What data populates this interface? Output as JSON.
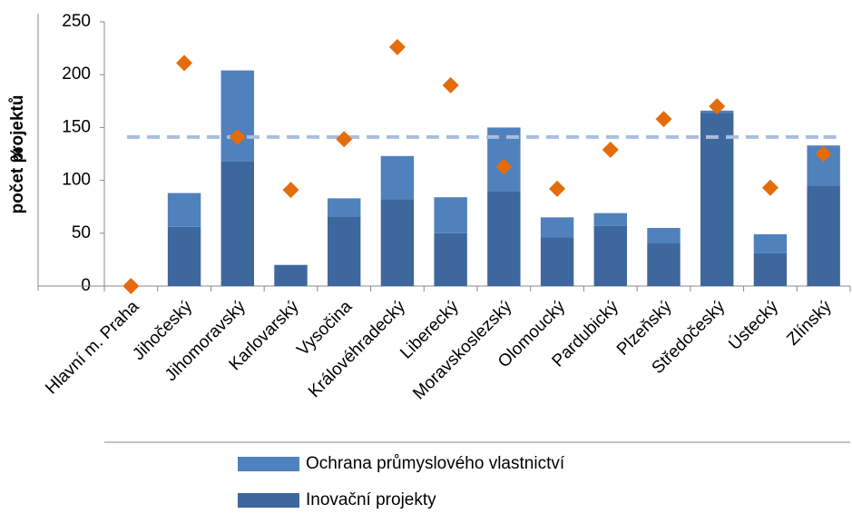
{
  "chart_data": {
    "type": "bar",
    "y_label": "počet projektů",
    "y2_label": "%",
    "categories": [
      "Hlavní m. Praha",
      "Jihočeský",
      "Jihomoravský",
      "Karlovarský",
      "Vysočina",
      "Královéhradecký",
      "Liberecký",
      "Moravskoslezský",
      "Olomoucký",
      "Pardubický",
      "Plzeňský",
      "Středočeský",
      "Ústecký",
      "Zlínský"
    ],
    "series": [
      {
        "name": "Ochrana průmyslového vlastnictví",
        "color": "#4f81bd",
        "values": [
          0,
          32,
          86,
          0,
          17,
          41,
          34,
          60,
          19,
          12,
          14,
          2,
          18,
          38
        ]
      },
      {
        "name": "Inovační projekty",
        "color": "#3d679d",
        "values": [
          0,
          56,
          118,
          20,
          66,
          82,
          50,
          90,
          46,
          57,
          41,
          164,
          31,
          95
        ]
      },
      {
        "marker": "diamond",
        "color": "#e46c0a",
        "values": [
          0,
          211,
          141,
          91,
          139,
          226,
          190,
          113,
          92,
          129,
          158,
          170,
          93,
          125
        ]
      },
      {
        "line_style": "dashed",
        "color": "#a9bedd",
        "values": [
          141,
          141,
          141,
          141,
          141,
          141,
          141,
          141,
          141,
          141,
          141,
          141,
          141,
          141
        ]
      }
    ],
    "ylim": [
      0,
      250
    ],
    "yticks": [
      0,
      50,
      100,
      150,
      200,
      250
    ]
  }
}
